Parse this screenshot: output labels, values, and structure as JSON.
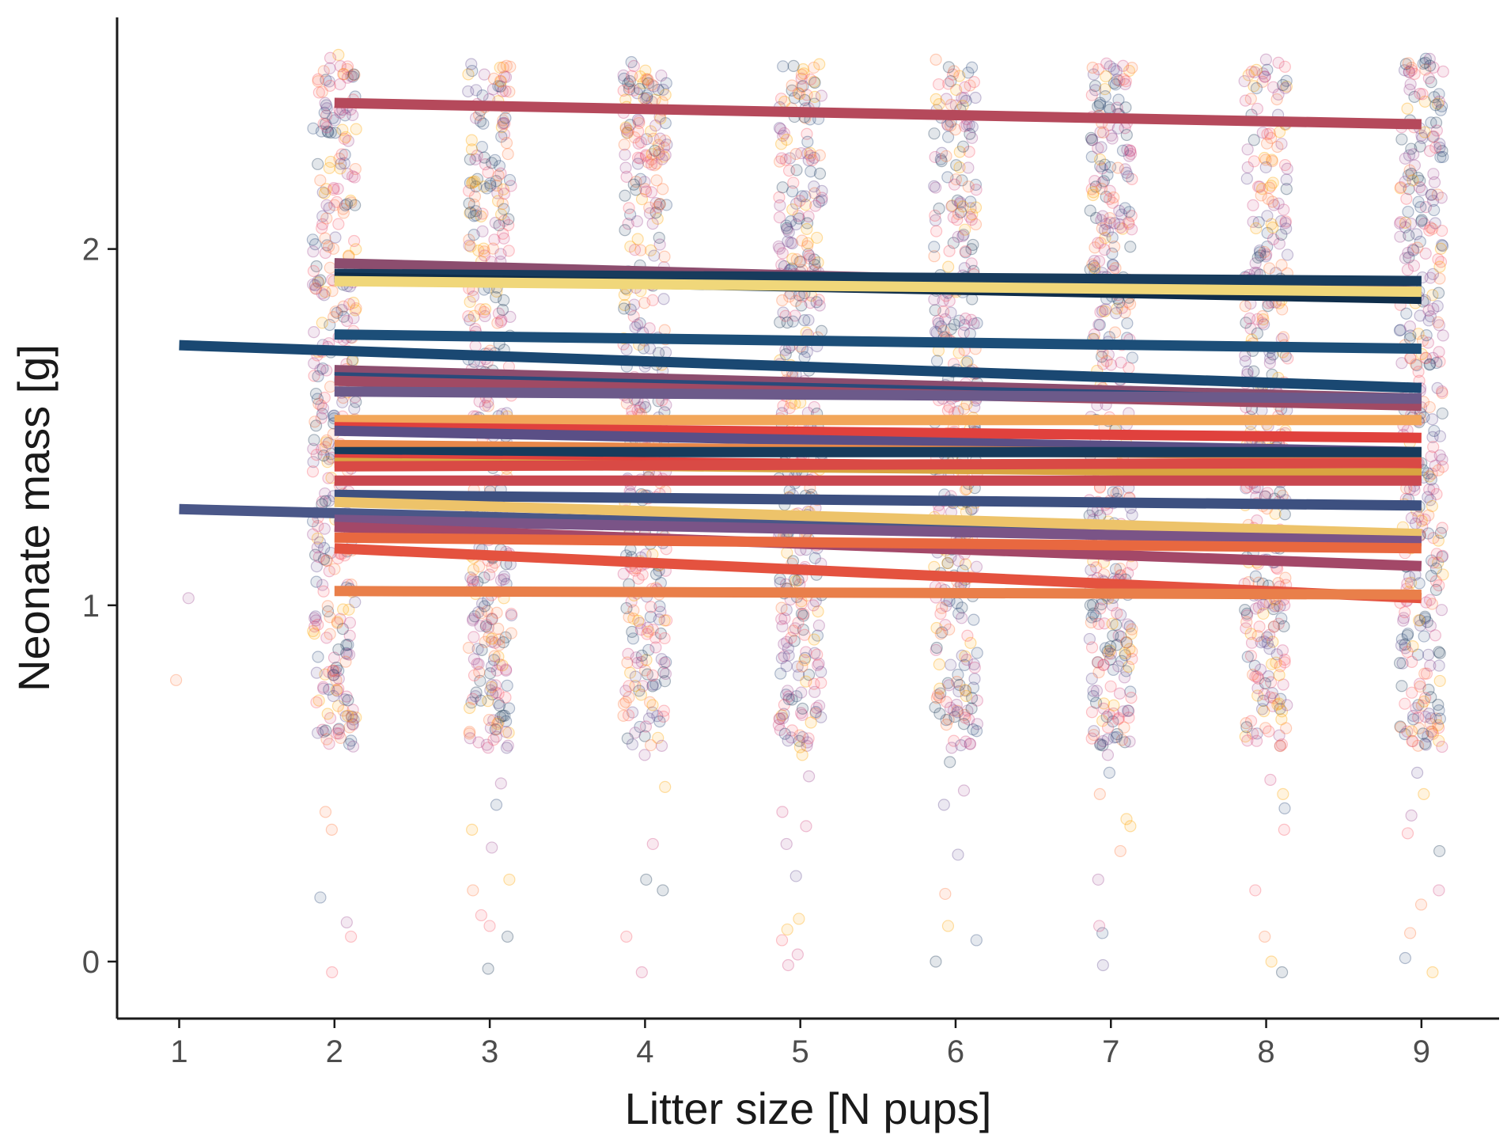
{
  "chart_data": {
    "type": "scatter",
    "title": "",
    "xlabel": "Litter size [N pups]",
    "ylabel": "Neonate mass [g]",
    "x_ticks": [
      1,
      2,
      3,
      4,
      5,
      6,
      7,
      8,
      9
    ],
    "y_ticks": [
      0,
      1,
      2
    ],
    "xlim": [
      0.6,
      9.5
    ],
    "ylim": [
      -0.16,
      2.65
    ],
    "grid": false,
    "legend": "none",
    "point_style": {
      "opacity": 0.13,
      "note_colors": [
        "#2f4b7c",
        "#665191",
        "#a05195",
        "#d45087",
        "#f95d6a",
        "#ff7c43",
        "#ffa600",
        "#1f3b5a"
      ]
    },
    "point_clusters": [
      {
        "x": 1,
        "y": [
          0.79,
          1.02
        ]
      },
      {
        "x": 2,
        "y_range": [
          0.6,
          2.55
        ],
        "sparse_low": [
          -0.03,
          0.07,
          0.11,
          0.18,
          0.37,
          0.42,
          0.62,
          0.64,
          0.69
        ]
      },
      {
        "x": 3,
        "y_range": [
          0.6,
          2.52
        ],
        "sparse_low": [
          -0.02,
          0.07,
          0.1,
          0.13,
          0.2,
          0.23,
          0.32,
          0.37,
          0.44,
          0.5,
          0.6,
          0.64,
          0.69
        ]
      },
      {
        "x": 4,
        "y_range": [
          0.6,
          2.53
        ],
        "sparse_low": [
          -0.03,
          0.07,
          0.2,
          0.23,
          0.33,
          0.49,
          0.58,
          0.69,
          0.72,
          0.76
        ]
      },
      {
        "x": 5,
        "y_range": [
          0.6,
          2.52
        ],
        "sparse_low": [
          -0.01,
          0.02,
          0.06,
          0.09,
          0.12,
          0.24,
          0.33,
          0.38,
          0.42,
          0.52,
          0.58,
          0.63,
          0.71,
          0.76
        ]
      },
      {
        "x": 6,
        "y_range": [
          0.6,
          2.54
        ],
        "sparse_low": 0.0,
        "sparse_low_values": [
          0.0,
          0.06,
          0.1,
          0.19,
          0.3,
          0.44,
          0.48,
          0.56,
          0.6,
          0.7,
          0.74
        ]
      },
      {
        "x": 7,
        "y_range": [
          0.6,
          2.53
        ],
        "sparse_low": [
          -0.01,
          0.08,
          0.1,
          0.23,
          0.31,
          0.38,
          0.4,
          0.47,
          0.53,
          0.58,
          0.63,
          0.68,
          0.71,
          0.76
        ]
      },
      {
        "x": 8,
        "y_range": [
          0.6,
          2.54
        ],
        "sparse_low": [
          -0.03,
          0.0,
          0.07,
          0.2,
          0.37,
          0.43,
          0.47,
          0.51,
          0.64,
          0.68,
          0.72
        ]
      },
      {
        "x": 9,
        "y_range": [
          0.6,
          2.54
        ],
        "sparse_low": [
          -0.03,
          0.01,
          0.08,
          0.16,
          0.2,
          0.31,
          0.36,
          0.41,
          0.47,
          0.53,
          0.64,
          0.68,
          0.74
        ]
      }
    ],
    "series": [
      {
        "x": [
          2,
          9
        ],
        "y": [
          2.41,
          2.35
        ],
        "color": "#b5495b"
      },
      {
        "x": [
          2,
          9
        ],
        "y": [
          1.96,
          1.88
        ],
        "color": "#8c4d6e"
      },
      {
        "x": [
          2,
          9
        ],
        "y": [
          1.93,
          1.91
        ],
        "color": "#173b5c"
      },
      {
        "x": [
          2,
          9
        ],
        "y": [
          1.92,
          1.86
        ],
        "color": "#0f2d4a"
      },
      {
        "x": [
          2,
          9
        ],
        "y": [
          1.91,
          1.88
        ],
        "color": "#f0d77a"
      },
      {
        "x": [
          2,
          9
        ],
        "y": [
          1.76,
          1.72
        ],
        "color": "#1c4e78"
      },
      {
        "x": [
          1,
          9
        ],
        "y": [
          1.73,
          1.61
        ],
        "color": "#1a4872"
      },
      {
        "x": [
          2,
          9
        ],
        "y": [
          1.66,
          1.58
        ],
        "color": "#8c4d6e"
      },
      {
        "x": [
          2,
          9
        ],
        "y": [
          1.64,
          1.57
        ],
        "color": "#2a4a7a"
      },
      {
        "x": [
          2,
          9
        ],
        "y": [
          1.63,
          1.56
        ],
        "color": "#a04a64"
      },
      {
        "x": [
          2,
          9
        ],
        "y": [
          1.6,
          1.58
        ],
        "color": "#6c5a8a"
      },
      {
        "x": [
          2,
          9
        ],
        "y": [
          1.52,
          1.52
        ],
        "color": "#f2a65a"
      },
      {
        "x": [
          2,
          9
        ],
        "y": [
          1.5,
          1.47
        ],
        "color": "#e0413d"
      },
      {
        "x": [
          2,
          9
        ],
        "y": [
          1.49,
          1.43
        ],
        "color": "#5a4f86"
      },
      {
        "x": [
          2,
          9
        ],
        "y": [
          1.45,
          1.42
        ],
        "color": "#e8884a"
      },
      {
        "x": [
          2,
          9
        ],
        "y": [
          1.43,
          1.43
        ],
        "color": "#173b5c"
      },
      {
        "x": [
          2,
          9
        ],
        "y": [
          1.41,
          1.38
        ],
        "color": "#e0413d"
      },
      {
        "x": [
          2,
          9
        ],
        "y": [
          1.4,
          1.37
        ],
        "color": "#d9a441"
      },
      {
        "x": [
          2,
          9
        ],
        "y": [
          1.39,
          1.4
        ],
        "color": "#d94a45"
      },
      {
        "x": [
          2,
          9
        ],
        "y": [
          1.35,
          1.35
        ],
        "color": "#c9474f"
      },
      {
        "x": [
          2,
          9
        ],
        "y": [
          1.31,
          1.28
        ],
        "color": "#3d5080"
      },
      {
        "x": [
          1,
          9
        ],
        "y": [
          1.27,
          1.18
        ],
        "color": "#4a5788"
      },
      {
        "x": [
          2,
          9
        ],
        "y": [
          1.29,
          1.2
        ],
        "color": "#edc36a"
      },
      {
        "x": [
          2,
          9
        ],
        "y": [
          1.24,
          1.18
        ],
        "color": "#7a5487"
      },
      {
        "x": [
          2,
          9
        ],
        "y": [
          1.22,
          1.11
        ],
        "color": "#a34868"
      },
      {
        "x": [
          2,
          9
        ],
        "y": [
          1.19,
          1.16
        ],
        "color": "#e86840"
      },
      {
        "x": [
          2,
          9
        ],
        "y": [
          1.16,
          1.02
        ],
        "color": "#e4523f"
      },
      {
        "x": [
          2,
          9
        ],
        "y": [
          1.04,
          1.03
        ],
        "color": "#e97f4a"
      }
    ]
  }
}
